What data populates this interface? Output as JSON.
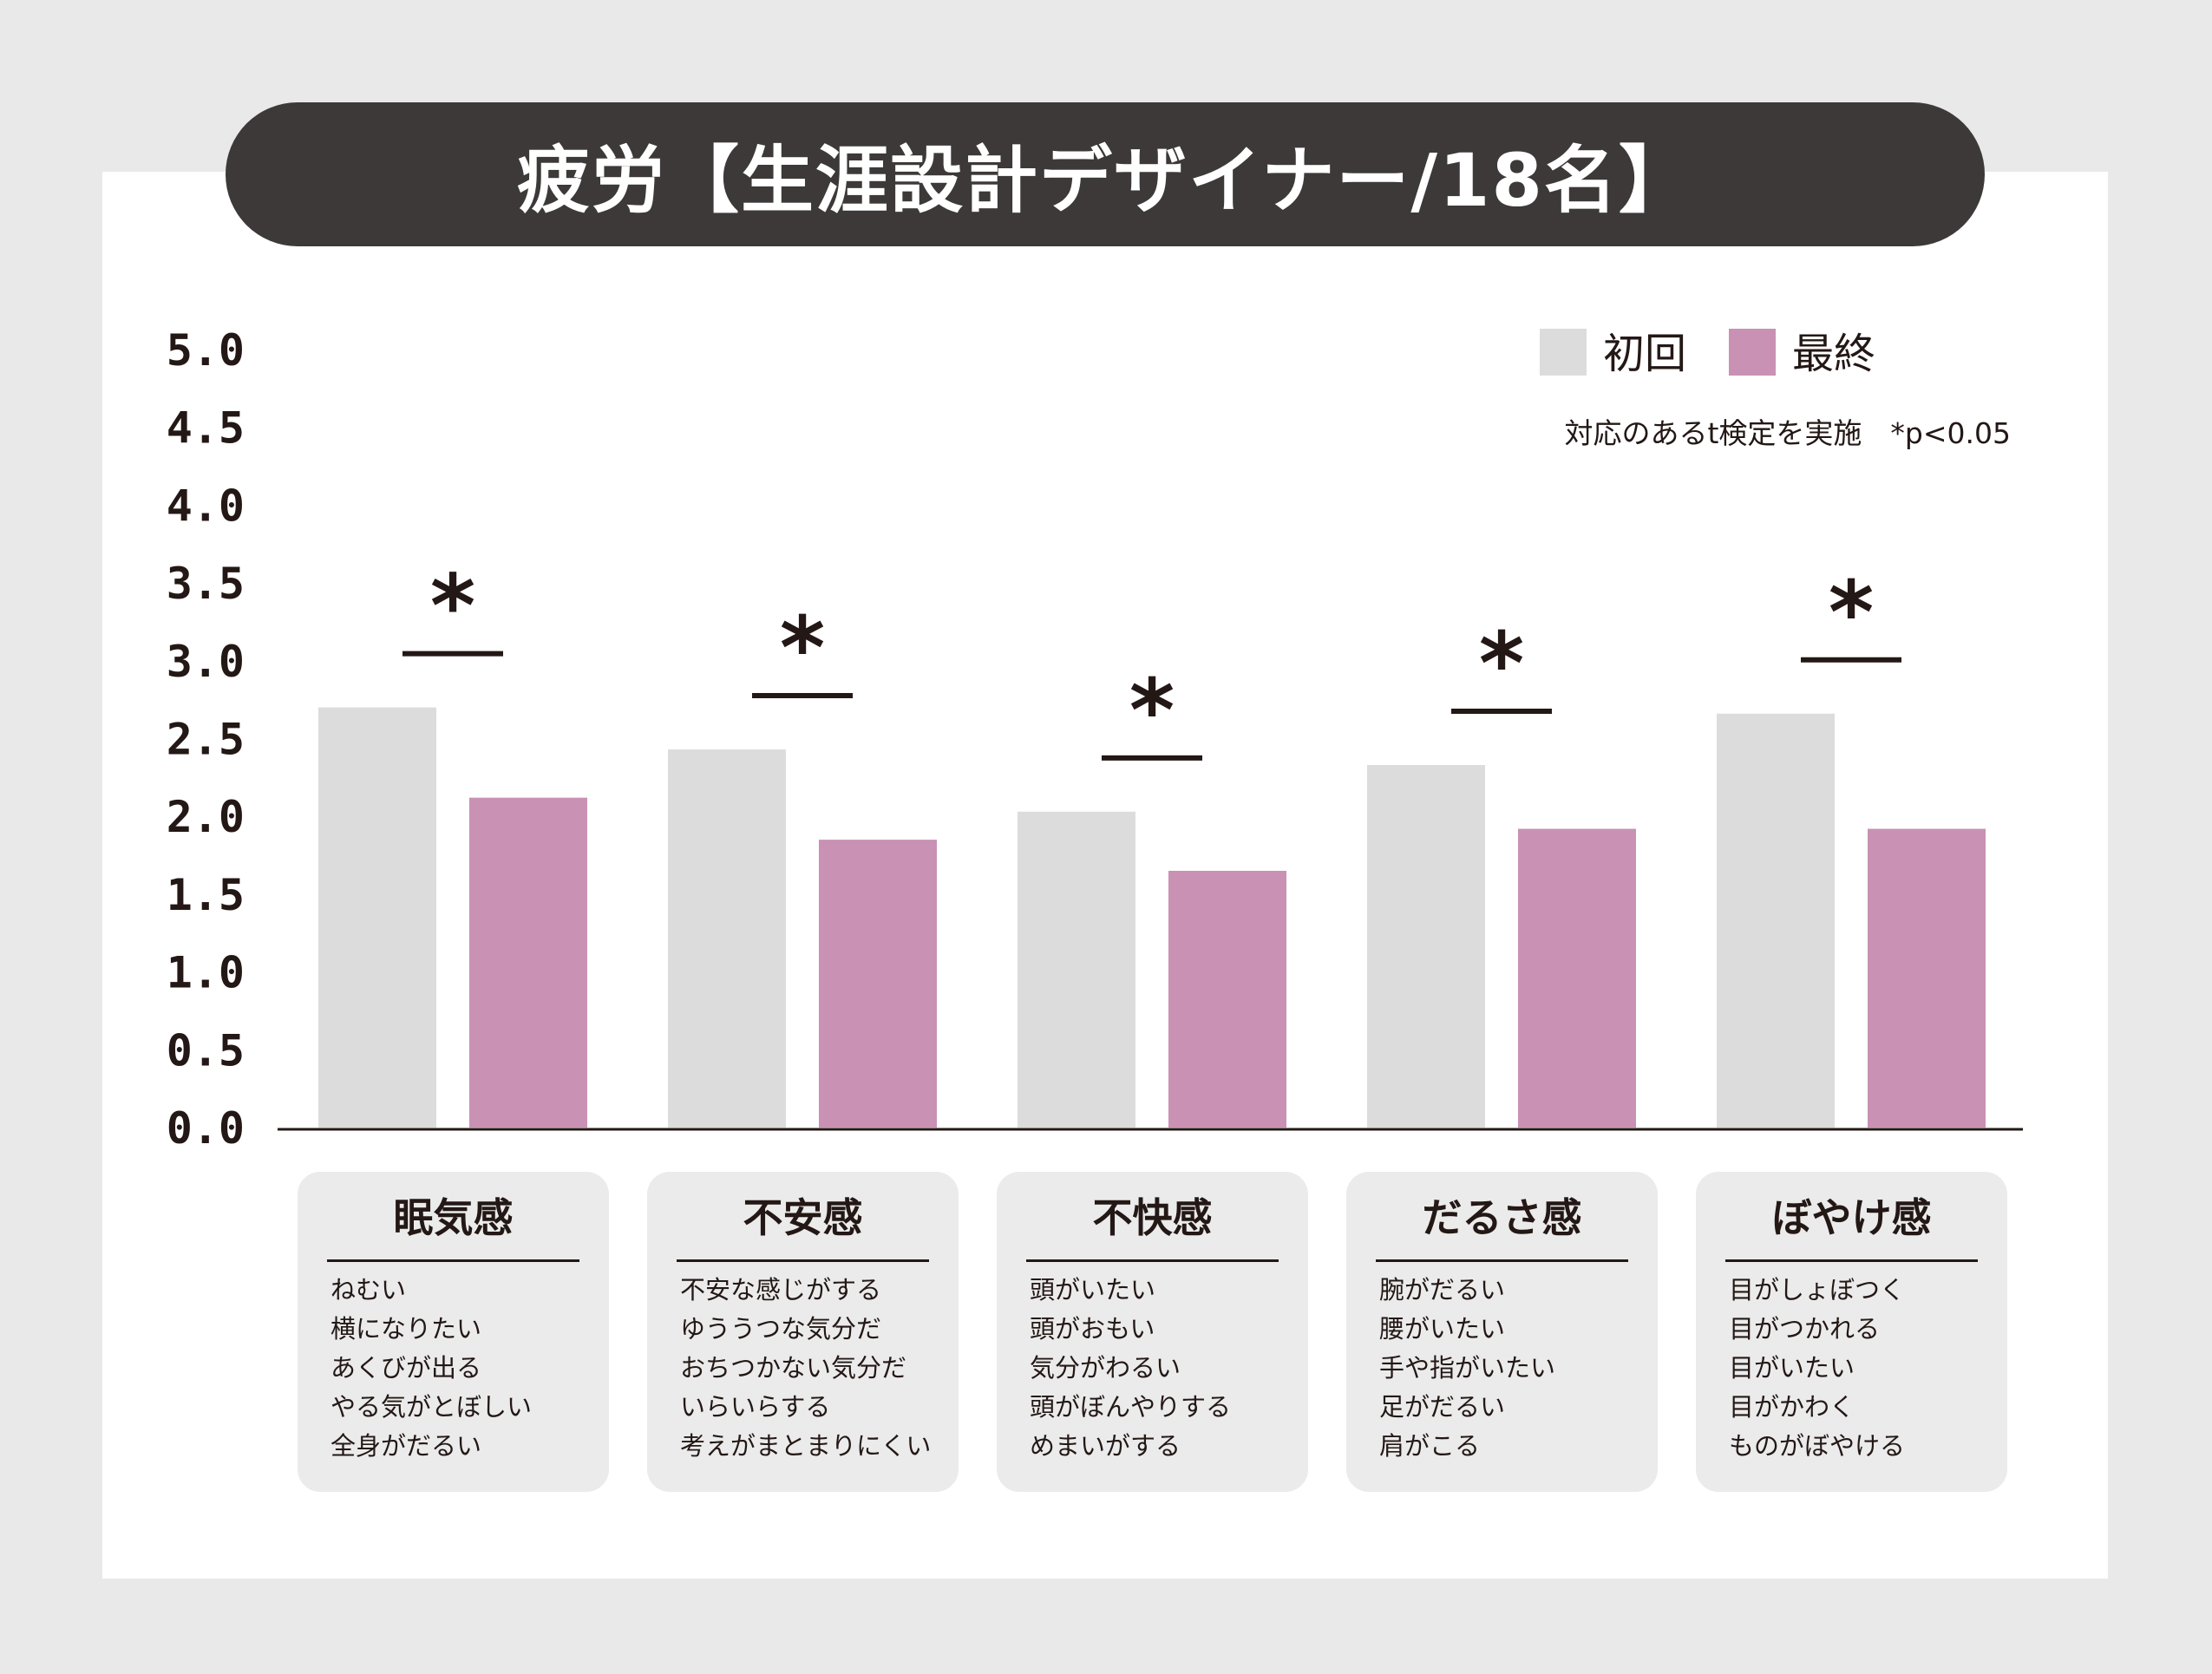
{
  "title": "疲労【生涯設計デザイナー/18名】",
  "legend": [
    {
      "label": "初回",
      "color": "#dcdcdc"
    },
    {
      "label": "最終",
      "color": "#c991b3"
    }
  ],
  "note": "対応のあるt検定を実施　*p<0.05",
  "chart_data": {
    "type": "bar",
    "title": "疲労【生涯設計デザイナー/18名】",
    "categories": [
      "眠気感",
      "不安感",
      "不快感",
      "だるさ感",
      "ぼやけ感"
    ],
    "series": [
      {
        "name": "初回",
        "values": [
          2.7,
          2.43,
          2.03,
          2.33,
          2.66
        ]
      },
      {
        "name": "最終",
        "values": [
          2.12,
          1.85,
          1.65,
          1.92,
          1.92
        ]
      }
    ],
    "significance": [
      "*",
      "*",
      "*",
      "*",
      "*"
    ],
    "ylim": [
      0,
      5.0
    ],
    "yticks": [
      "0.0",
      "0.5",
      "1.0",
      "1.5",
      "2.0",
      "2.5",
      "3.0",
      "3.5",
      "4.0",
      "4.5",
      "5.0"
    ],
    "xlabel": "",
    "ylabel": "",
    "legend_position": "top-right"
  },
  "categories_detail": [
    {
      "name": "眠気感",
      "items": [
        "ねむい",
        "横になりたい",
        "あくびが出る",
        "やる気がとぼしい",
        "全身がだるい"
      ]
    },
    {
      "name": "不安感",
      "items": [
        "不安な感じがする",
        "ゆううつな気分だ",
        "おちつかない気分だ",
        "いらいらする",
        "考えがまとまりにくい"
      ]
    },
    {
      "name": "不快感",
      "items": [
        "頭がいたい",
        "頭がおもい",
        "気分がわるい",
        "頭がぼんやりする",
        "めまいがする"
      ]
    },
    {
      "name": "だるさ感",
      "items": [
        "腕がだるい",
        "腰がいたい",
        "手や指がいたい",
        "足がだるい",
        "肩がこる"
      ]
    },
    {
      "name": "ぼやけ感",
      "items": [
        "目がしょぼつく",
        "目がつかれる",
        "目がいたい",
        "目がかわく",
        "ものがぼやける"
      ]
    }
  ]
}
